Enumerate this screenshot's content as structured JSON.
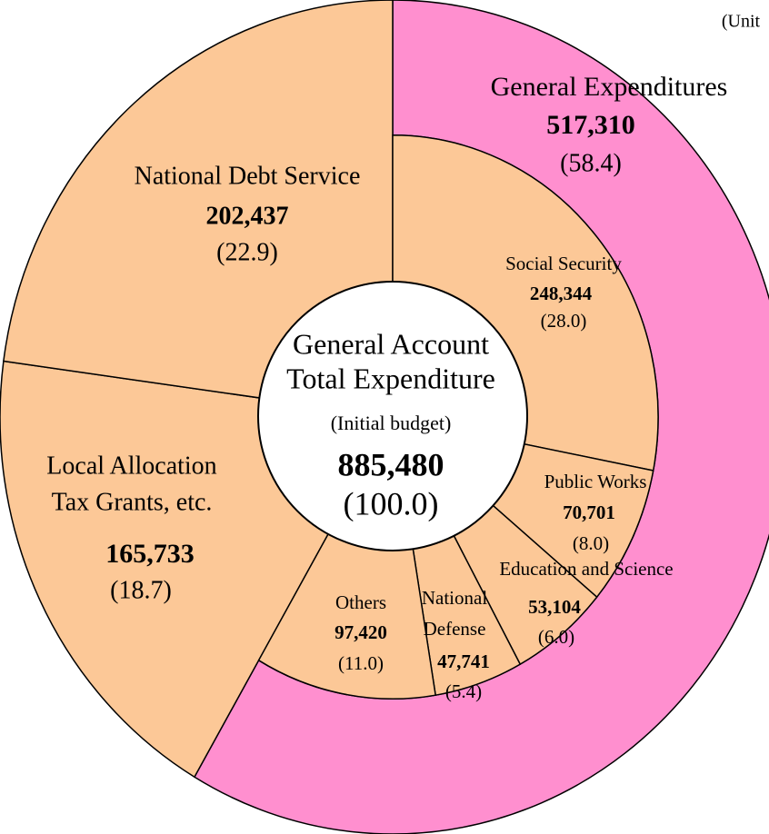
{
  "chart_data": {
    "type": "donut",
    "unit_note": "(Unit",
    "center": {
      "title": [
        "General Account",
        "Total Expenditure"
      ],
      "subtitle": "(Initial budget)",
      "value": 885480,
      "value_label": "885,480",
      "share": 100.0,
      "share_label": "(100.0)",
      "color": "#ffffff"
    },
    "outer": [
      {
        "name": [
          "General Expenditures"
        ],
        "value": 517310,
        "value_label": "517,310",
        "share": 58.4,
        "share_label": "(58.4)",
        "color": "#ff8fcf"
      },
      {
        "name": [
          "Local Allocation",
          "Tax Grants, etc."
        ],
        "value": 165733,
        "value_label": "165,733",
        "share": 18.7,
        "share_label": "(18.7)",
        "color": "#fcc897"
      },
      {
        "name": [
          "National Debt Service"
        ],
        "value": 202437,
        "value_label": "202,437",
        "share": 22.9,
        "share_label": "(22.9)",
        "color": "#fcc897"
      }
    ],
    "inner": [
      {
        "name": [
          "Social Security"
        ],
        "value": 248344,
        "value_label": "248,344",
        "share": 28.0,
        "share_label": "(28.0)",
        "color": "#fcc897"
      },
      {
        "name": [
          "Public Works"
        ],
        "value": 70701,
        "value_label": "70,701",
        "share": 8.0,
        "share_label": "(8.0)",
        "color": "#fcc897"
      },
      {
        "name": [
          "Education and Science"
        ],
        "value": 53104,
        "value_label": "53,104",
        "share": 6.0,
        "share_label": "(6.0)",
        "color": "#fcc897"
      },
      {
        "name": [
          "National",
          "Defense"
        ],
        "value": 47741,
        "value_label": "47,741",
        "share": 5.4,
        "share_label": "(5.4)",
        "color": "#fcc897"
      },
      {
        "name": [
          "Others"
        ],
        "value": 97420,
        "value_label": "97,420",
        "share": 11.0,
        "share_label": "(11.0)",
        "color": "#fcc897"
      }
    ]
  }
}
